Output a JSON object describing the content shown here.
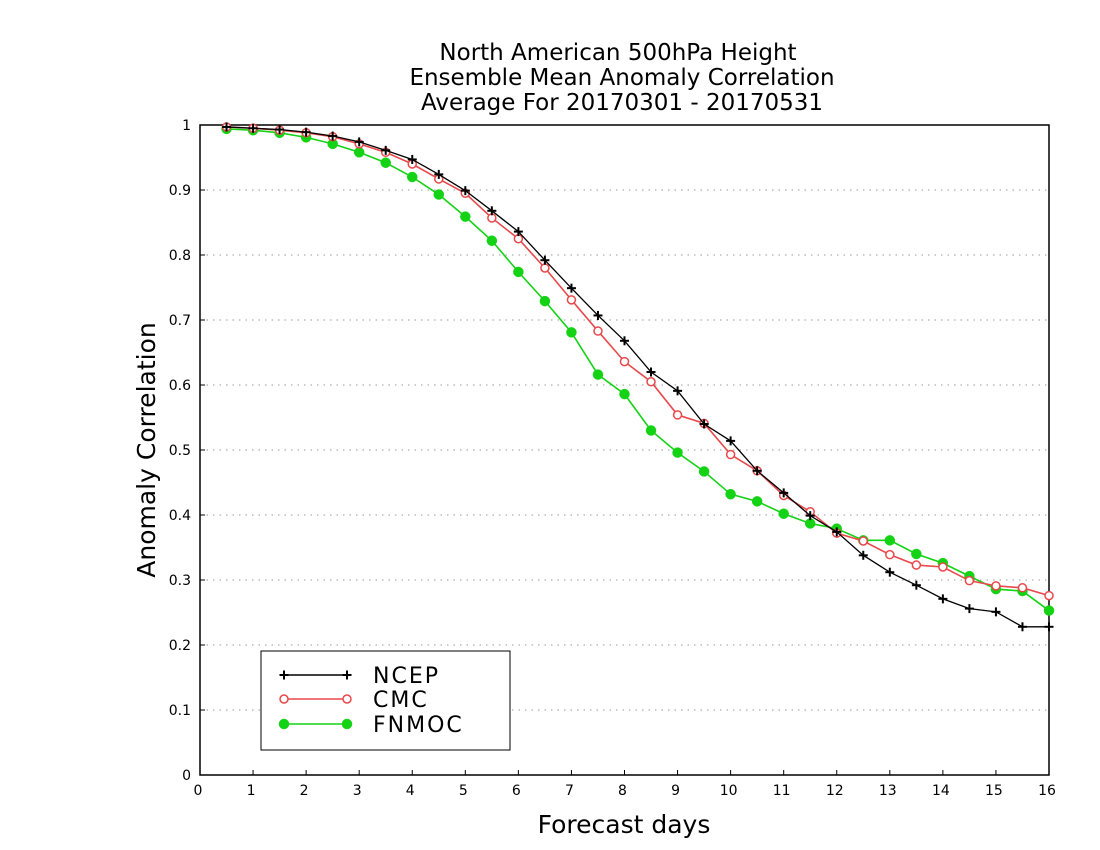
{
  "chart_data": {
    "type": "line",
    "title": [
      "North American 500hPa Height",
      "Ensemble Mean Anomaly Correlation",
      "Average For 20170301 - 20170531"
    ],
    "xlabel": "Forecast days",
    "ylabel": "Anomaly Correlation",
    "xlim": [
      0,
      16
    ],
    "ylim": [
      0,
      1
    ],
    "xticks": [
      "0",
      "1",
      "2",
      "3",
      "4",
      "5",
      "6",
      "7",
      "8",
      "9",
      "10",
      "11",
      "12",
      "13",
      "14",
      "15",
      "16"
    ],
    "yticks": [
      "0",
      "0.1",
      "0.2",
      "0.3",
      "0.4",
      "0.5",
      "0.6",
      "0.7",
      "0.8",
      "0.9",
      "1"
    ],
    "grid": "horizontal dotted",
    "legend_position": "bottom-left",
    "x": [
      0.5,
      1,
      1.5,
      2,
      2.5,
      3,
      3.5,
      4,
      4.5,
      5,
      5.5,
      6,
      6.5,
      7,
      7.5,
      8,
      8.5,
      9,
      9.5,
      10,
      10.5,
      11,
      11.5,
      12,
      12.5,
      13,
      13.5,
      14,
      14.5,
      15,
      15.5,
      16
    ],
    "series": [
      {
        "name": "NCEP",
        "color": "#000000",
        "marker": "plus",
        "values": [
          0.997,
          0.995,
          0.993,
          0.989,
          0.983,
          0.974,
          0.961,
          0.947,
          0.924,
          0.899,
          0.868,
          0.836,
          0.792,
          0.749,
          0.707,
          0.668,
          0.62,
          0.591,
          0.54,
          0.514,
          0.468,
          0.434,
          0.399,
          0.374,
          0.338,
          0.312,
          0.292,
          0.271,
          0.256,
          0.251,
          0.228,
          0.228
        ]
      },
      {
        "name": "CMC",
        "color": "#e8484b",
        "marker": "open-circle",
        "values": [
          0.997,
          0.995,
          0.992,
          0.988,
          0.982,
          0.971,
          0.958,
          0.94,
          0.917,
          0.895,
          0.857,
          0.825,
          0.78,
          0.731,
          0.683,
          0.636,
          0.605,
          0.554,
          0.541,
          0.493,
          0.468,
          0.43,
          0.405,
          0.372,
          0.36,
          0.339,
          0.323,
          0.32,
          0.299,
          0.291,
          0.288,
          0.276
        ]
      },
      {
        "name": "FNMOC",
        "color": "#14d214",
        "marker": "filled-circle",
        "values": [
          0.994,
          0.992,
          0.988,
          0.981,
          0.971,
          0.958,
          0.942,
          0.92,
          0.893,
          0.859,
          0.822,
          0.774,
          0.729,
          0.681,
          0.616,
          0.586,
          0.53,
          0.496,
          0.467,
          0.432,
          0.421,
          0.402,
          0.387,
          0.379,
          0.361,
          0.361,
          0.34,
          0.326,
          0.306,
          0.286,
          0.283,
          0.253
        ]
      }
    ]
  }
}
